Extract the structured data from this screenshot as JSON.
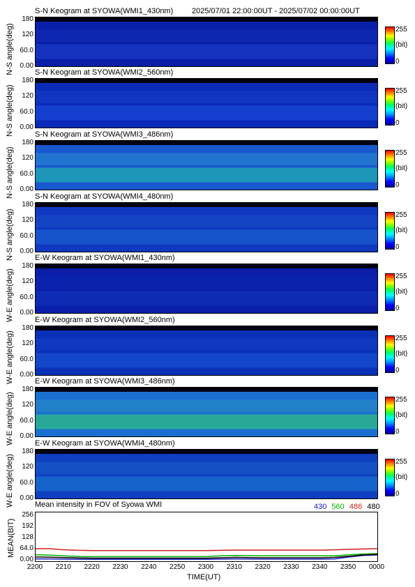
{
  "header": {
    "time_range": "2025/07/01 22:00:00UT - 2025/07/02 00:00:00UT"
  },
  "colorbar": {
    "max": "255",
    "unit": "(bit)",
    "min": "0"
  },
  "ns_ylabel": "N-S angle(deg)",
  "we_ylabel": "W-E angle(deg)",
  "angle_ticks": [
    "180",
    "120",
    "60.0",
    "0.00"
  ],
  "panels": [
    {
      "title": "S-N Keogram at SYOWA(WMI1_430nm)",
      "axis": "ns",
      "base": "#0a1fa8",
      "band1": "#1a3bc8",
      "band2": "#1230b8",
      "level": 0.12
    },
    {
      "title": "S-N Keogram at SYOWA(WMI2_560nm)",
      "axis": "ns",
      "base": "#0a2ab8",
      "band1": "#1a4ad8",
      "band2": "#1540c8",
      "level": 0.18
    },
    {
      "title": "S-N Keogram at SYOWA(WMI3_486nm)",
      "axis": "ns",
      "base": "#1a58d0",
      "band1": "#20b0b0",
      "band2": "#2a90d0",
      "level": 0.35
    },
    {
      "title": "S-N Keogram at SYOWA(WMI4_480nm)",
      "axis": "ns",
      "base": "#1038c0",
      "band1": "#1a60d0",
      "band2": "#1850c8",
      "level": 0.22
    },
    {
      "title": "E-W Keogram at SYOWA(WMI1_430nm)",
      "axis": "we",
      "base": "#0a1ea8",
      "band1": "#1030b8",
      "band2": "#0c28b0",
      "level": 0.1
    },
    {
      "title": "E-W Keogram at SYOWA(WMI2_560nm)",
      "axis": "we",
      "base": "#0a30b8",
      "band1": "#1850d0",
      "band2": "#1240c8",
      "level": 0.2
    },
    {
      "title": "E-W Keogram at SYOWA(WMI3_486nm)",
      "axis": "we",
      "base": "#1a70d0",
      "band1": "#30c080",
      "band2": "#2a90c0",
      "level": 0.4
    },
    {
      "title": "E-W Keogram at SYOWA(WMI4_480nm)",
      "axis": "we",
      "base": "#1040c0",
      "band1": "#1a70d0",
      "band2": "#1860c8",
      "level": 0.25
    }
  ],
  "mean": {
    "title": "Mean intensity in FOV of Syowa WMI",
    "ylabel": "MEAN(BIT)",
    "xlabel": "TIME(UT)"
  },
  "chart_data": {
    "type": "line",
    "title": "Mean intensity in FOV of Syowa WMI",
    "xlabel": "TIME(UT)",
    "ylabel": "MEAN(BIT)",
    "x_ticks": [
      "2200",
      "2210",
      "2220",
      "2230",
      "2240",
      "2250",
      "2300",
      "2310",
      "2320",
      "2330",
      "2340",
      "2350",
      "0000"
    ],
    "y_ticks": [
      "256",
      "192",
      "128",
      "64.0",
      "0.00"
    ],
    "ylim": [
      0,
      256
    ],
    "x": [
      0,
      5,
      10,
      15,
      20,
      30,
      40,
      50,
      60,
      65,
      70,
      80,
      90,
      100,
      105,
      110,
      115,
      120
    ],
    "series": [
      {
        "name": "430",
        "color": "#2020c0",
        "values": [
          12,
          12,
          11,
          10,
          10,
          10,
          10,
          10,
          10,
          11,
          12,
          11,
          11,
          11,
          12,
          22,
          30,
          33
        ]
      },
      {
        "name": "560",
        "color": "#00b000",
        "values": [
          34,
          32,
          28,
          25,
          24,
          24,
          24,
          24,
          24,
          28,
          30,
          28,
          28,
          28,
          28,
          34,
          38,
          40
        ]
      },
      {
        "name": "486",
        "color": "#d02020",
        "values": [
          66,
          66,
          60,
          57,
          56,
          56,
          56,
          56,
          56,
          57,
          58,
          58,
          58,
          58,
          60,
          62,
          64,
          66
        ]
      },
      {
        "name": "480",
        "color": "#000000",
        "values": [
          22,
          21,
          19,
          17,
          16,
          16,
          16,
          16,
          16,
          18,
          20,
          18,
          18,
          18,
          20,
          26,
          33,
          36
        ]
      }
    ]
  }
}
